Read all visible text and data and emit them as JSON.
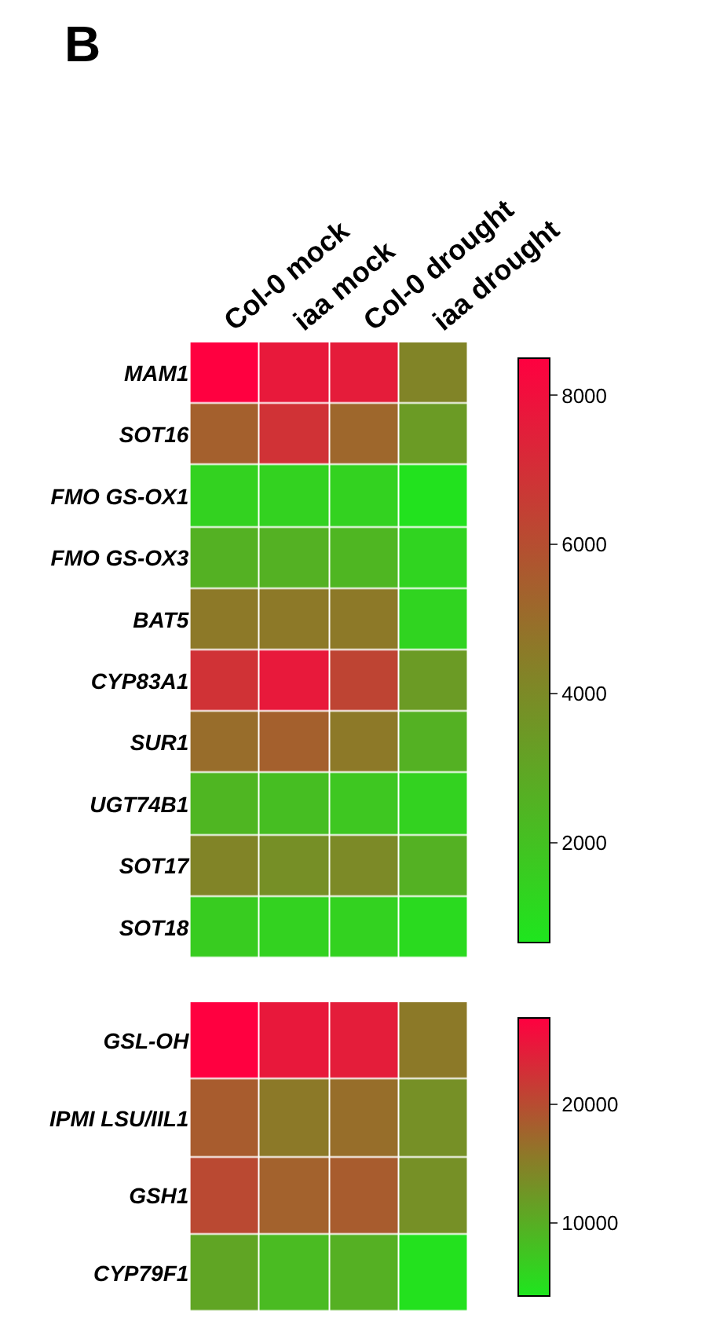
{
  "chart_data": [
    {
      "type": "heatmap",
      "title": "B",
      "categories": [
        "Col-0 mock",
        "iaa mock",
        "Col-0 drought",
        "iaa drought"
      ],
      "y_categories": [
        "MAM1",
        "SOT16",
        "FMO GS-OX1",
        "FMO GS-OX3",
        "BAT5",
        "CYP83A1",
        "SUR1",
        "UGT74B1",
        "SOT17",
        "SOT18"
      ],
      "cells": [
        [
          8500,
          7700,
          7600,
          4200
        ],
        [
          5400,
          6900,
          5200,
          3400
        ],
        [
          1400,
          1400,
          1400,
          800
        ],
        [
          2600,
          2600,
          2400,
          1300
        ],
        [
          4600,
          4600,
          4600,
          1300
        ],
        [
          6900,
          7700,
          6300,
          3400
        ],
        [
          5000,
          5400,
          4600,
          2600
        ],
        [
          2400,
          2100,
          1800,
          1400
        ],
        [
          4200,
          3800,
          4000,
          2600
        ],
        [
          1600,
          1400,
          1400,
          1100
        ]
      ],
      "clim": [
        660,
        8500
      ],
      "cticks": [
        2000,
        4000,
        6000,
        8000
      ]
    },
    {
      "type": "heatmap",
      "categories": [
        null,
        null,
        null,
        null
      ],
      "y_categories": [
        "GSL-OH",
        "IPMI LSU/IIL1",
        "GSH1",
        "CYP79F1"
      ],
      "cells": [
        [
          27300,
          25000,
          24500,
          15600
        ],
        [
          18400,
          15600,
          16700,
          13200
        ],
        [
          20300,
          17900,
          18400,
          13200
        ],
        [
          10900,
          8500,
          9700,
          4300
        ]
      ],
      "clim": [
        3800,
        27300
      ],
      "cticks": [
        10000,
        20000
      ],
      "tick_labels": "y"
    }
  ]
}
